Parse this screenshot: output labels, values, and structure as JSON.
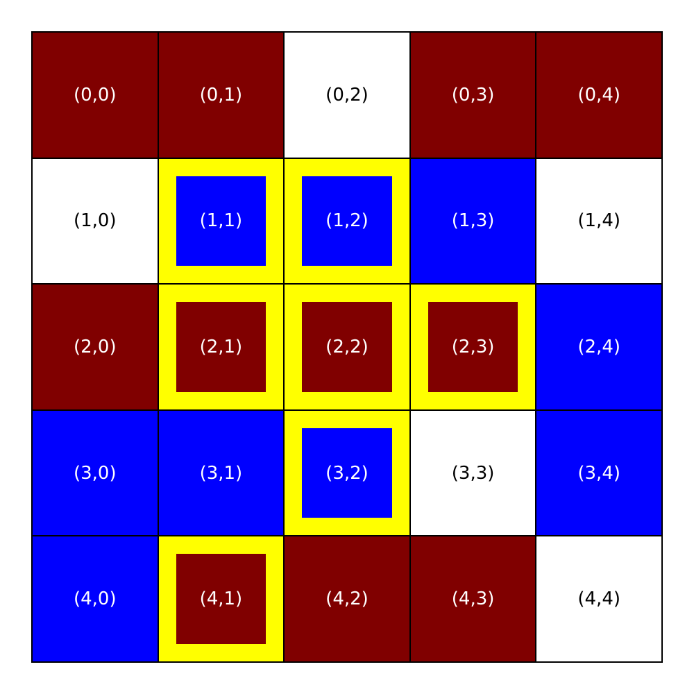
{
  "colors": {
    "maroon": "#800000",
    "blue": "#0000ff",
    "white": "#ffffff",
    "highlight": "#ffff00"
  },
  "grid": [
    [
      {
        "label": "(0,0)",
        "color": "maroon",
        "highlighted": false
      },
      {
        "label": "(0,1)",
        "color": "maroon",
        "highlighted": false
      },
      {
        "label": "(0,2)",
        "color": "white",
        "highlighted": false
      },
      {
        "label": "(0,3)",
        "color": "maroon",
        "highlighted": false
      },
      {
        "label": "(0,4)",
        "color": "maroon",
        "highlighted": false
      }
    ],
    [
      {
        "label": "(1,0)",
        "color": "white",
        "highlighted": false
      },
      {
        "label": "(1,1)",
        "color": "blue",
        "highlighted": true
      },
      {
        "label": "(1,2)",
        "color": "blue",
        "highlighted": true
      },
      {
        "label": "(1,3)",
        "color": "blue",
        "highlighted": false
      },
      {
        "label": "(1,4)",
        "color": "white",
        "highlighted": false
      }
    ],
    [
      {
        "label": "(2,0)",
        "color": "maroon",
        "highlighted": false
      },
      {
        "label": "(2,1)",
        "color": "maroon",
        "highlighted": true
      },
      {
        "label": "(2,2)",
        "color": "maroon",
        "highlighted": true
      },
      {
        "label": "(2,3)",
        "color": "maroon",
        "highlighted": true
      },
      {
        "label": "(2,4)",
        "color": "blue",
        "highlighted": false
      }
    ],
    [
      {
        "label": "(3,0)",
        "color": "blue",
        "highlighted": false
      },
      {
        "label": "(3,1)",
        "color": "blue",
        "highlighted": false
      },
      {
        "label": "(3,2)",
        "color": "blue",
        "highlighted": true
      },
      {
        "label": "(3,3)",
        "color": "white",
        "highlighted": false
      },
      {
        "label": "(3,4)",
        "color": "blue",
        "highlighted": false
      }
    ],
    [
      {
        "label": "(4,0)",
        "color": "blue",
        "highlighted": false
      },
      {
        "label": "(4,1)",
        "color": "maroon",
        "highlighted": true
      },
      {
        "label": "(4,2)",
        "color": "maroon",
        "highlighted": false
      },
      {
        "label": "(4,3)",
        "color": "maroon",
        "highlighted": false
      },
      {
        "label": "(4,4)",
        "color": "white",
        "highlighted": false
      }
    ]
  ]
}
